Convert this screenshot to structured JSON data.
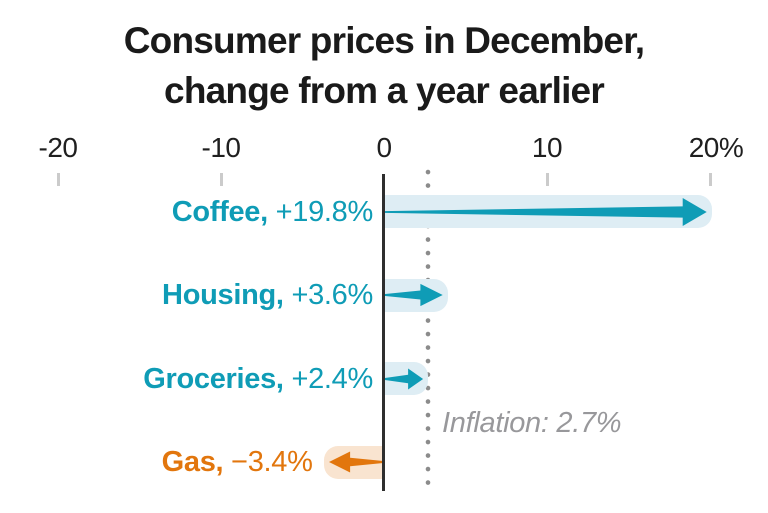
{
  "chart_data": {
    "type": "bar",
    "title_line1": "Consumer prices in December,",
    "title_line2": "change from a year earlier",
    "unit": "%",
    "xlim": [
      -20,
      20
    ],
    "grid": "off",
    "legend": "none",
    "x_axis": {
      "tick_values": [
        -20,
        -10,
        0,
        10,
        20
      ],
      "tick_labels": [
        "-20",
        "-10",
        "0",
        "10",
        "20%"
      ]
    },
    "categories": [
      "Coffee",
      "Housing",
      "Groceries",
      "Gas"
    ],
    "values": [
      19.8,
      3.6,
      2.4,
      -3.4
    ],
    "series": [
      {
        "name": "Coffee,",
        "value": 19.8,
        "value_label": "+19.8%",
        "direction": "positive"
      },
      {
        "name": "Housing,",
        "value": 3.6,
        "value_label": "+3.6%",
        "direction": "positive"
      },
      {
        "name": "Groceries,",
        "value": 2.4,
        "value_label": "+2.4%",
        "direction": "positive"
      },
      {
        "name": "Gas,",
        "value": -3.4,
        "value_label": "−3.4%",
        "direction": "negative"
      }
    ],
    "reference_line": {
      "value": 2.7,
      "label": "Inflation: 2.7%"
    },
    "colors": {
      "positive": "#0f9cb6",
      "positive_band": "#deedf4",
      "negative": "#e2760d",
      "negative_band": "#f9e4d0",
      "axis_line": "#2e2e2e",
      "tick": "#cbcbcb",
      "reference_dots": "#8b8b8b",
      "reference_label": "#98989b",
      "title": "#1a1a1a",
      "axis_label": "#1f1f1f"
    }
  }
}
